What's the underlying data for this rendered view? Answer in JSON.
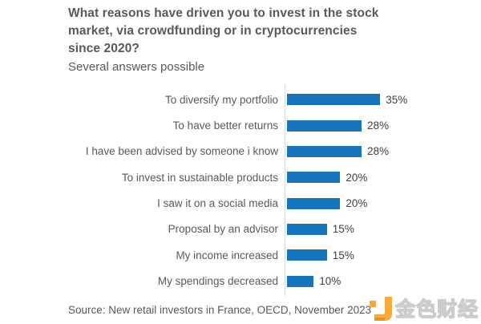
{
  "header": {
    "title_lines": [
      "What reasons have driven you to invest in the stock",
      "market, via crowdfunding or in cryptocurrencies",
      "since 2020?"
    ],
    "subtitle": "Several answers possible"
  },
  "chart_data": {
    "type": "bar",
    "orientation": "horizontal",
    "title": "What reasons have driven you to invest in the stock market, via crowdfunding or in cryptocurrencies since 2020?",
    "subtitle": "Several answers possible",
    "categories": [
      "To diversify my portfolio",
      "To have better returns",
      "I have been advised by someone i know",
      "To invest in sustainable products",
      "I saw it on a social media",
      "Proposal by an advisor",
      "My income increased",
      "My spendings decreased"
    ],
    "values": [
      35,
      28,
      28,
      20,
      20,
      15,
      15,
      10
    ],
    "value_suffix": "%",
    "data_labels": true,
    "xlabel": "",
    "ylabel": "",
    "xlim": [
      0,
      40
    ],
    "grid": false,
    "legend": false,
    "bar_color": "#1674BC",
    "axis_line_color": "#d9d9d9",
    "label_color": "#595959",
    "value_label_color": "#404040"
  },
  "footer": {
    "source": "Source: New retail investors in France, OECD, November 2023",
    "watermark_text": "金色财经",
    "watermark_logo_color": "#F6AA3C"
  }
}
